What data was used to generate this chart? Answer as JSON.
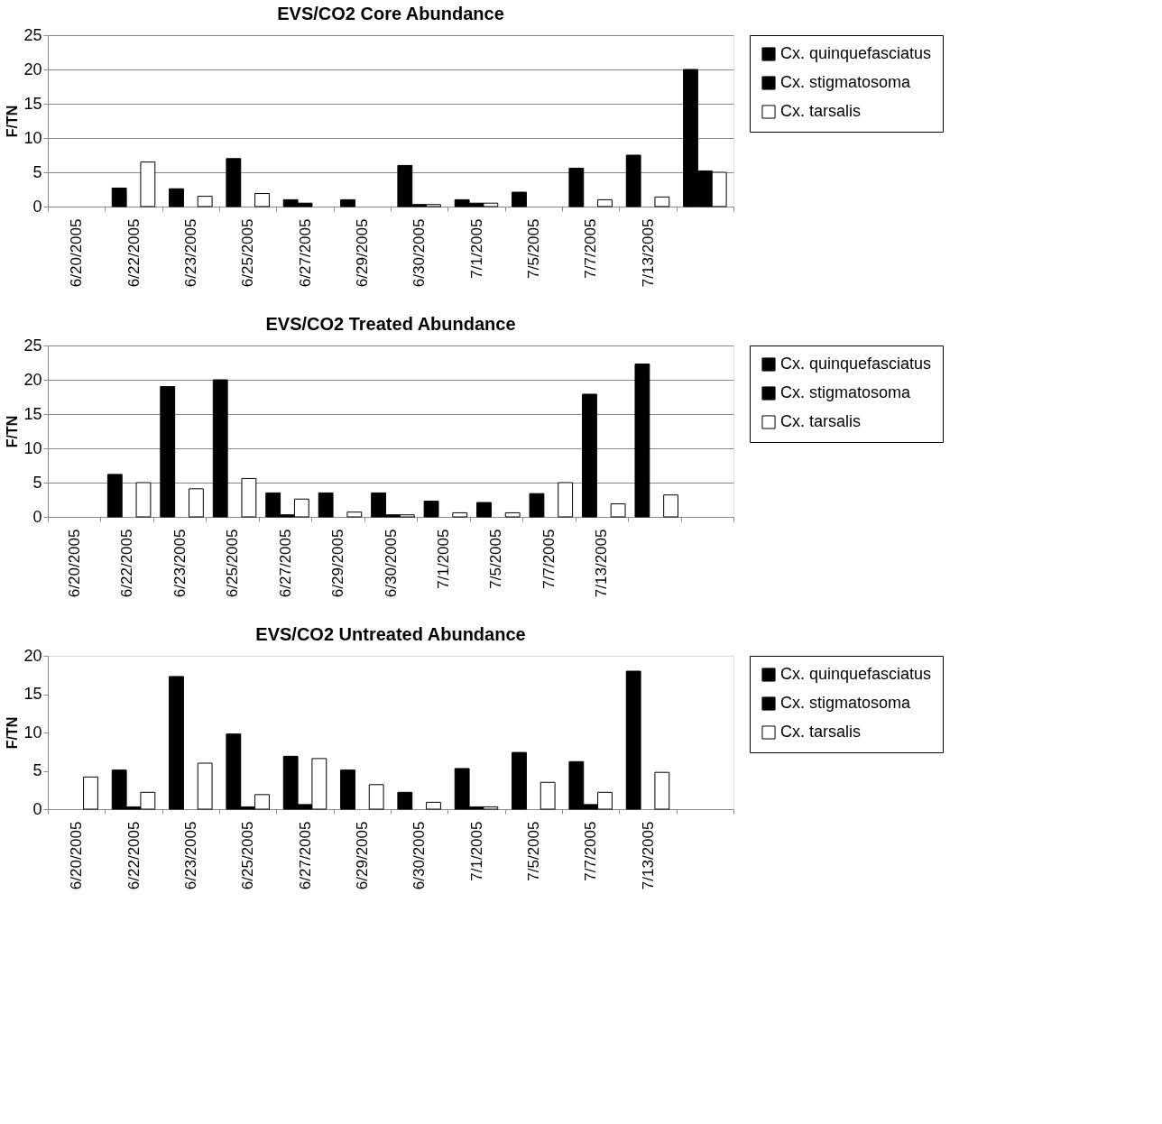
{
  "chart_data": [
    {
      "type": "bar",
      "title": "EVS/CO2 Core Abundance",
      "ylabel": "F/TN",
      "categories": [
        "6/20/2005",
        "6/22/2005",
        "6/23/2005",
        "6/25/2005",
        "6/27/2005",
        "6/29/2005",
        "6/30/2005",
        "7/1/2005",
        "7/5/2005",
        "7/7/2005",
        "7/13/2005",
        null
      ],
      "ylim": [
        0,
        25
      ],
      "yticks": [
        0,
        5,
        10,
        15,
        20,
        25
      ],
      "grid": "y",
      "legend": "right",
      "series": [
        {
          "name": "Cx. quinquefasciatus",
          "color": "#000000",
          "values": [
            0,
            2.7,
            2.6,
            7.0,
            1.0,
            1.0,
            6.0,
            1.0,
            2.1,
            5.6,
            7.5,
            20
          ]
        },
        {
          "name": "Cx. stigmatosoma",
          "color": "#000000",
          "values": [
            0,
            0,
            0,
            0,
            0.5,
            0,
            0.3,
            0.5,
            0,
            0,
            0,
            5.2
          ]
        },
        {
          "name": "Cx. tarsalis",
          "color": "#ffffff",
          "values": [
            0,
            6.5,
            1.5,
            1.9,
            0,
            0,
            0.3,
            0.5,
            0,
            1.0,
            1.4,
            5.0
          ]
        }
      ]
    },
    {
      "type": "bar",
      "title": "EVS/CO2 Treated Abundance",
      "ylabel": "F/TN",
      "categories": [
        "6/20/2005",
        "6/22/2005",
        "6/23/2005",
        "6/25/2005",
        "6/27/2005",
        "6/29/2005",
        "6/30/2005",
        "7/1/2005",
        "7/5/2005",
        "7/7/2005",
        "7/13/2005",
        null,
        null
      ],
      "ylim": [
        0,
        25
      ],
      "yticks": [
        0,
        5,
        10,
        15,
        20,
        25
      ],
      "grid": "y",
      "legend": "right",
      "series": [
        {
          "name": "Cx. quinquefasciatus",
          "color": "#000000",
          "values": [
            0,
            6.2,
            19.0,
            20.0,
            3.5,
            3.5,
            3.5,
            2.3,
            2.1,
            3.4,
            17.9,
            22.3,
            0
          ]
        },
        {
          "name": "Cx. stigmatosoma",
          "color": "#000000",
          "values": [
            0,
            0,
            0,
            0,
            0.3,
            0,
            0.3,
            0,
            0,
            0,
            0,
            0,
            0
          ]
        },
        {
          "name": "Cx. tarsalis",
          "color": "#ffffff",
          "values": [
            0,
            5.0,
            4.1,
            5.6,
            2.6,
            0.7,
            0.3,
            0.6,
            0.6,
            5.0,
            1.9,
            3.2,
            0
          ]
        }
      ]
    },
    {
      "type": "bar",
      "title": "EVS/CO2 Untreated Abundance",
      "ylabel": "F/TN",
      "categories": [
        "6/20/2005",
        "6/22/2005",
        "6/23/2005",
        "6/25/2005",
        "6/27/2005",
        "6/29/2005",
        "6/30/2005",
        "7/1/2005",
        "7/5/2005",
        "7/7/2005",
        "7/13/2005",
        null
      ],
      "ylim": [
        0,
        20
      ],
      "yticks": [
        0,
        5,
        10,
        15,
        20
      ],
      "grid": false,
      "legend": "right",
      "series": [
        {
          "name": "Cx. quinquefasciatus",
          "color": "#000000",
          "values": [
            0,
            5.1,
            17.3,
            9.8,
            6.9,
            5.1,
            2.2,
            5.3,
            7.4,
            6.2,
            18.0,
            0
          ]
        },
        {
          "name": "Cx. stigmatosoma",
          "color": "#000000",
          "values": [
            0,
            0.3,
            0,
            0.3,
            0.6,
            0,
            0,
            0.3,
            0,
            0.6,
            0,
            0
          ]
        },
        {
          "name": "Cx. tarsalis",
          "color": "#ffffff",
          "values": [
            4.2,
            2.2,
            6.0,
            1.9,
            6.6,
            3.2,
            0.9,
            0.3,
            3.5,
            2.2,
            4.8,
            0
          ]
        }
      ]
    }
  ]
}
